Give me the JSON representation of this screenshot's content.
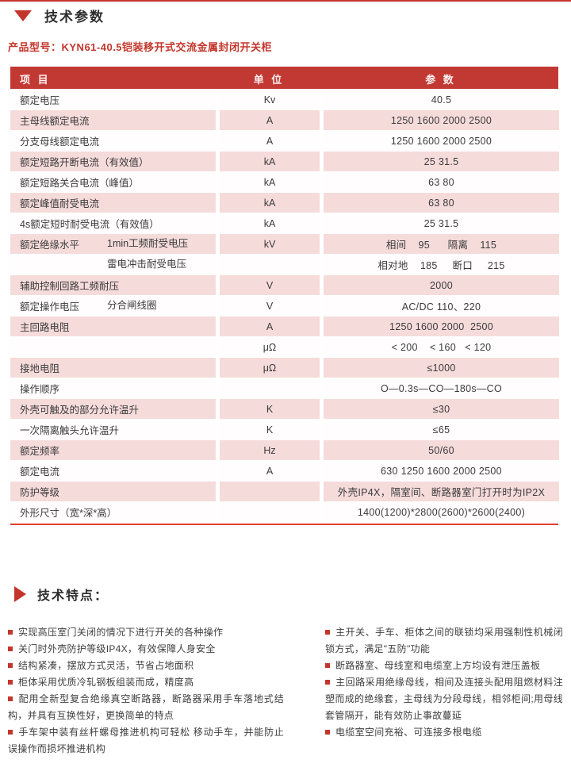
{
  "colors": {
    "accent_red": "#c3362b",
    "table_header_bg": "#c23933",
    "row_pink": "#f6dbdb",
    "bottom_rule": "#e2402f",
    "text": "#3a3a3a"
  },
  "header": {
    "section_title": "技术参数",
    "product_model": "产品型号：KYN61-40.5铠装移开式交流金属封闭开关柜"
  },
  "table": {
    "headers": [
      "项 目",
      "单 位",
      "参 数"
    ],
    "rows": [
      {
        "item": "额定电压",
        "sub": "",
        "unit": "Kv",
        "value": "40.5"
      },
      {
        "item": "主母线额定电流",
        "sub": "",
        "unit": "A",
        "value": "1250 1600 2000 2500"
      },
      {
        "item": "分支母线额定电流",
        "sub": "",
        "unit": "A",
        "value": "1250 1600 2000 2500"
      },
      {
        "item": "额定短路开断电流（有效值）",
        "sub": "",
        "unit": "kA",
        "value": "25 31.5"
      },
      {
        "item": "额定短路关合电流（峰值）",
        "sub": "",
        "unit": "kA",
        "value": "63 80"
      },
      {
        "item": "额定峰值耐受电流",
        "sub": "",
        "unit": "kA",
        "value": "63 80"
      },
      {
        "item": "4s额定短时耐受电流（有效值）",
        "sub": "",
        "unit": "kA",
        "value": "25 31.5"
      },
      {
        "item": "额定绝缘水平",
        "sub": "1min工频耐受电压",
        "unit": "kV",
        "value": "相间    95      隔离    115"
      },
      {
        "item": "",
        "sub": "雷电冲击耐受电压",
        "unit": "",
        "value": "相对地    185     断口     215"
      },
      {
        "item": "辅助控制回路工频耐压",
        "sub": "",
        "unit": "V",
        "value": "2000"
      },
      {
        "item": "额定操作电压",
        "sub": "分合闸线圈",
        "unit": "V",
        "value": "AC/DC 110、220"
      },
      {
        "item": "主回路电阻",
        "sub": "",
        "unit": "A",
        "value": "1250 1600 2000  2500"
      },
      {
        "item": "",
        "sub": "",
        "unit": "μΩ",
        "value": "< 200    < 160   < 120"
      },
      {
        "item": "接地电阻",
        "sub": "",
        "unit": "μΩ",
        "value": "≤1000"
      },
      {
        "item": "操作顺序",
        "sub": "",
        "unit": "",
        "value": "O—0.3s—CO—180s—CO"
      },
      {
        "item": "外壳可触及的部分允许温升",
        "sub": "",
        "unit": "K",
        "value": "≤30"
      },
      {
        "item": "一次隔离触头允许温升",
        "sub": "",
        "unit": "K",
        "value": "≤65"
      },
      {
        "item": "额定频率",
        "sub": "",
        "unit": "Hz",
        "value": "50/60"
      },
      {
        "item": "额定电流",
        "sub": "",
        "unit": "A",
        "value": "630 1250 1600 2000 2500"
      },
      {
        "item": "防护等级",
        "sub": "",
        "unit": "",
        "value": "外壳IP4X，隔室间、断路器室门打开时为IP2X"
      },
      {
        "item": "外形尺寸（宽*深*高）",
        "sub": "",
        "unit": "",
        "value": "1400(1200)*2800(2600)*2600(2400)"
      }
    ]
  },
  "features": {
    "title": "技术特点：",
    "left": [
      "实现高压室门关闭的情况下进行开关的各种操作",
      "关门时外壳防护等级IP4X，有效保障人身安全",
      "结构紧凑，摆放方式灵活，节省占地面积",
      "柜体采用优质冷轧钢板组装而成，精度高",
      "配用全新型复合绝缘真空断路器，断路器采用手车落地式结构，并具有互换性好，更换简单的特点",
      "手车架中装有丝杆螺母推进机构可轻松 移动手车，并能防止误操作而损坏推进机构"
    ],
    "right": [
      "主开关、手车、柜体之间的联锁均采用强制性机械闭锁方式，满足\"五防\"功能",
      "断路器室、母线室和电缆室上方均设有泄压盖板",
      "主回路采用绝缘母线，相间及连接头配用阻燃材料注塑而成的绝缘套，主母线为分段母线，相邻柜间;用母线套管隔开，能有效防止事故蔓延",
      "电缆室空间充裕、可连接多根电缆"
    ]
  }
}
